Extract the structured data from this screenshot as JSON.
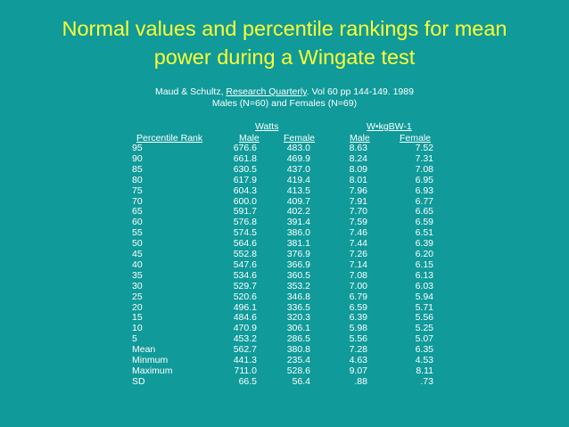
{
  "title": {
    "line1": "Normal values and percentile rankings for mean",
    "line2": "power during a Wingate test"
  },
  "citation": {
    "authors": "Maud & Schultz, ",
    "journal": "Research Quarterly",
    "rest": ". Vol 60 pp 144-149. 1989",
    "subjects": "Males (N=60) and Females (N=69)"
  },
  "table": {
    "group_watts": "Watts",
    "group_wkg": "W•kgBW-1",
    "col_rank": "Percentile Rank",
    "col_male": "Male",
    "col_female": "Female",
    "rows": [
      {
        "rank": "95",
        "w_male": "676.6",
        "w_female": "483.0",
        "k_male": "8.63",
        "k_female": "7.52"
      },
      {
        "rank": "90",
        "w_male": "661.8",
        "w_female": "469.9",
        "k_male": "8.24",
        "k_female": "7.31"
      },
      {
        "rank": "85",
        "w_male": "630.5",
        "w_female": "437.0",
        "k_male": "8.09",
        "k_female": "7.08"
      },
      {
        "rank": "80",
        "w_male": "617.9",
        "w_female": "419.4",
        "k_male": "8.01",
        "k_female": "6.95"
      },
      {
        "rank": "75",
        "w_male": "604.3",
        "w_female": "413.5",
        "k_male": "7.96",
        "k_female": "6.93"
      },
      {
        "rank": "70",
        "w_male": "600.0",
        "w_female": "409.7",
        "k_male": "7.91",
        "k_female": "6.77"
      },
      {
        "rank": "65",
        "w_male": "591.7",
        "w_female": "402.2",
        "k_male": "7.70",
        "k_female": "6.65"
      },
      {
        "rank": "60",
        "w_male": "576.8",
        "w_female": "391.4",
        "k_male": "7.59",
        "k_female": "6.59"
      },
      {
        "rank": "55",
        "w_male": "574.5",
        "w_female": "386.0",
        "k_male": "7.46",
        "k_female": "6.51"
      },
      {
        "rank": "50",
        "w_male": "564.6",
        "w_female": "381.1",
        "k_male": "7.44",
        "k_female": "6.39"
      },
      {
        "rank": "45",
        "w_male": "552.8",
        "w_female": "376.9",
        "k_male": "7.26",
        "k_female": "6.20"
      },
      {
        "rank": "40",
        "w_male": "547.6",
        "w_female": "366.9",
        "k_male": "7.14",
        "k_female": "6.15"
      },
      {
        "rank": "35",
        "w_male": "534.6",
        "w_female": "360.5",
        "k_male": "7.08",
        "k_female": "6.13"
      },
      {
        "rank": "30",
        "w_male": "529.7",
        "w_female": "353.2",
        "k_male": "7.00",
        "k_female": "6.03"
      },
      {
        "rank": "25",
        "w_male": "520.6",
        "w_female": "346.8",
        "k_male": "6.79",
        "k_female": "5.94"
      },
      {
        "rank": "20",
        "w_male": "496.1",
        "w_female": "336.5",
        "k_male": "6.59",
        "k_female": "5.71"
      },
      {
        "rank": "15",
        "w_male": "484.6",
        "w_female": "320.3",
        "k_male": "6.39",
        "k_female": "5.56"
      },
      {
        "rank": "10",
        "w_male": "470.9",
        "w_female": "306.1",
        "k_male": "5.98",
        "k_female": "5.25"
      },
      {
        "rank": "5",
        "w_male": "453.2",
        "w_female": "286.5",
        "k_male": "5.56",
        "k_female": "5.07"
      },
      {
        "rank": "Mean",
        "w_male": "562.7",
        "w_female": "380.8",
        "k_male": "7.28",
        "k_female": "6.35"
      },
      {
        "rank": "Minmum",
        "w_male": "441.3",
        "w_female": "235.4",
        "k_male": "4.63",
        "k_female": "4.53"
      },
      {
        "rank": "Maximum",
        "w_male": "711.0",
        "w_female": "528.6",
        "k_male": "9.07",
        "k_female": "8.11"
      },
      {
        "rank": "SD",
        "w_male": "66.5",
        "w_female": "56.4",
        "k_male": ".88",
        "k_female": ".73"
      }
    ]
  }
}
